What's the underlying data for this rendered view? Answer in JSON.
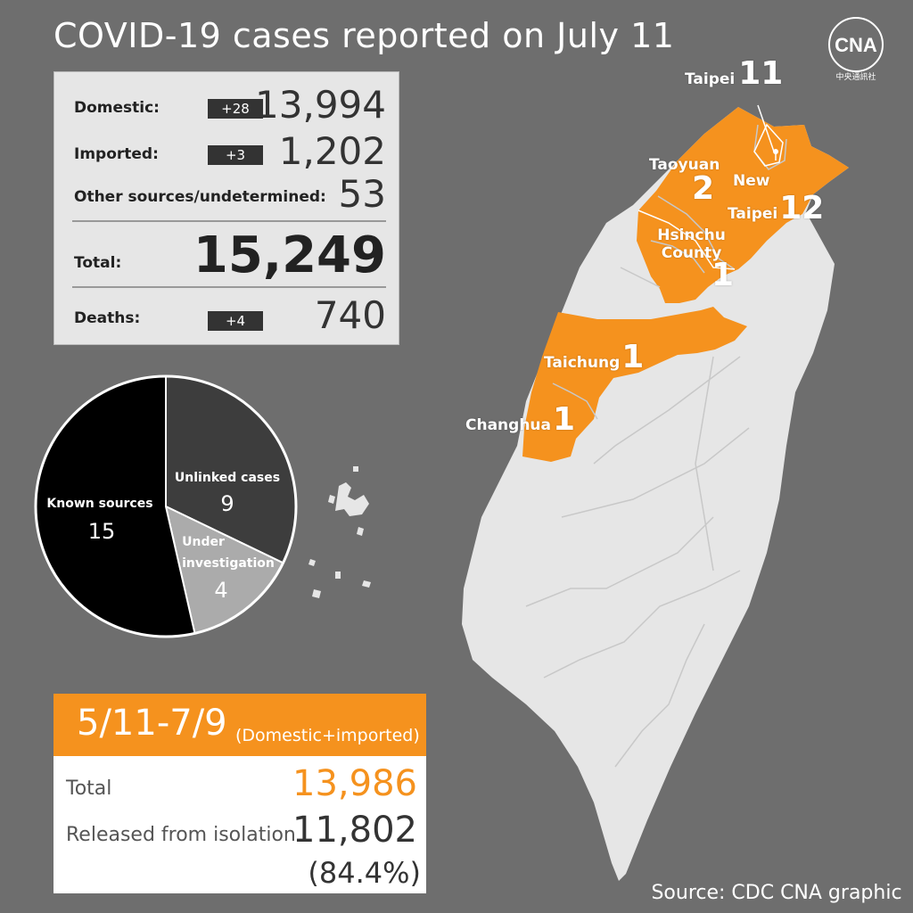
{
  "header": {
    "title": "COVID-19 cases reported on July 11"
  },
  "logo": {
    "icon": "cna-logo-icon",
    "text": "CNA",
    "subtext": "中央通訊社"
  },
  "stats": {
    "domestic": {
      "label": "Domestic:",
      "change": "+28",
      "value": "13,994"
    },
    "imported": {
      "label": "Imported:",
      "change": "+3",
      "value": "1,202"
    },
    "other": {
      "label": "Other sources/undetermined:",
      "value": "53"
    },
    "total": {
      "label": "Total:",
      "value": "15,249"
    },
    "deaths": {
      "label": "Deaths:",
      "change": "+4",
      "value": "740"
    }
  },
  "chart_data": {
    "type": "pie",
    "slices": [
      {
        "label": "Known sources",
        "value": 15,
        "color": "#000000"
      },
      {
        "label": "Unlinked cases",
        "value": 9,
        "color": "#3d3d3d"
      },
      {
        "label": "Under investigation",
        "value": 4,
        "color": "#ababab"
      }
    ],
    "label_lines": {
      "known": [
        "Known sources",
        "15"
      ],
      "unlinked": [
        "Unlinked cases",
        "9"
      ],
      "under": [
        "Under",
        "investigation",
        "4"
      ]
    }
  },
  "map": {
    "highlight_color": "#f5921e",
    "base_color": "#e6e6e6",
    "regions": {
      "taipei": {
        "name": "Taipei",
        "cases": "11"
      },
      "new_taipei": {
        "name_line1": "New",
        "name_line2": "Taipei",
        "cases": "12"
      },
      "taoyuan": {
        "name": "Taoyuan",
        "cases": "2"
      },
      "hsinchu": {
        "name_line1": "Hsinchu",
        "name_line2": "County",
        "cases": "1"
      },
      "taichung": {
        "name": "Taichung",
        "cases": "1"
      },
      "changhua": {
        "name": "Changhua",
        "cases": "1"
      }
    }
  },
  "period_box": {
    "range": "5/11-7/9",
    "note": "(Domestic+imported)",
    "total_label": "Total",
    "total_value": "13,986",
    "released_label": "Released from isolation",
    "released_value": "11,802",
    "released_pct": "(84.4%)",
    "accent_color": "#f5921e"
  },
  "footer": {
    "source": "Source: CDC  CNA graphic"
  }
}
